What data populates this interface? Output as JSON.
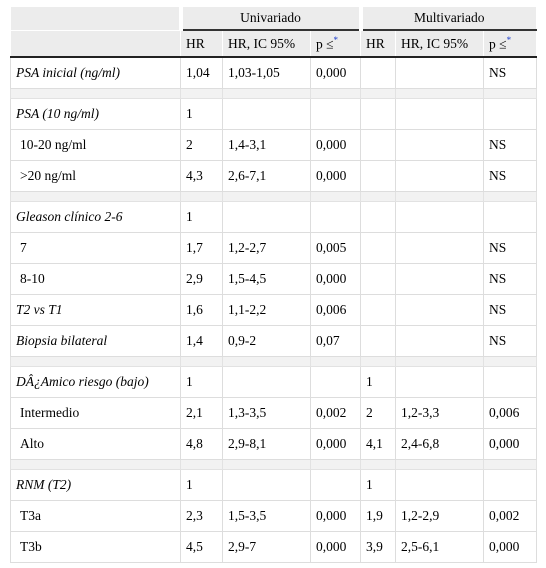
{
  "table": {
    "header": {
      "groups": [
        "Univariado",
        "Multivariado"
      ],
      "columns": [
        "HR",
        "HR, IC 95%",
        "p ≤",
        "HR",
        "HR, IC 95%",
        "p ≤"
      ],
      "footnote_mark": "*"
    },
    "groups": [
      [
        {
          "label": "PSA inicial (ng/ml)",
          "style": "italic",
          "cells": [
            "1,04",
            "1,03-1,05",
            "0,000",
            null,
            null,
            "NS"
          ]
        }
      ],
      [
        {
          "label": "PSA (10 ng/ml)",
          "style": "italic",
          "cells": [
            "1",
            null,
            null,
            null,
            null,
            null
          ]
        },
        {
          "label": "10-20 ng/ml",
          "style": "indent",
          "cells": [
            "2",
            "1,4-3,1",
            "0,000",
            null,
            null,
            "NS"
          ]
        },
        {
          "label": ">20 ng/ml",
          "style": "indent",
          "cells": [
            "4,3",
            "2,6-7,1",
            "0,000",
            null,
            null,
            "NS"
          ]
        }
      ],
      [
        {
          "label": "Gleason clínico 2-6",
          "style": "italic",
          "cells": [
            "1",
            null,
            null,
            null,
            null,
            null
          ]
        },
        {
          "label": "7",
          "style": "indent",
          "cells": [
            "1,7",
            "1,2-2,7",
            "0,005",
            null,
            null,
            "NS"
          ]
        },
        {
          "label": "8-10",
          "style": "indent",
          "cells": [
            "2,9",
            "1,5-4,5",
            "0,000",
            null,
            null,
            "NS"
          ]
        },
        {
          "label": "T2 vs T1",
          "style": "italic",
          "cells": [
            "1,6",
            "1,1-2,2",
            "0,006",
            null,
            null,
            "NS"
          ]
        },
        {
          "label": "Biopsia bilateral",
          "style": "italic",
          "cells": [
            "1,4",
            "0,9-2",
            "0,07",
            null,
            null,
            "NS"
          ]
        }
      ],
      [
        {
          "label": "DÂ¿Amico riesgo (bajo)",
          "style": "italic",
          "cells": [
            "1",
            null,
            null,
            "1",
            null,
            null
          ]
        },
        {
          "label": "Intermedio",
          "style": "indent",
          "cells": [
            "2,1",
            "1,3-3,5",
            "0,002",
            "2",
            "1,2-3,3",
            "0,006"
          ]
        },
        {
          "label": "Alto",
          "style": "indent",
          "cells": [
            "4,8",
            "2,9-8,1",
            "0,000",
            "4,1",
            "2,4-6,8",
            "0,000"
          ]
        }
      ],
      [
        {
          "label": "RNM (T2)",
          "style": "italic",
          "cells": [
            "1",
            null,
            null,
            "1",
            null,
            null
          ]
        },
        {
          "label": "T3a",
          "style": "indent",
          "cells": [
            "2,3",
            "1,5-3,5",
            "0,000",
            "1,9",
            "1,2-2,9",
            "0,002"
          ]
        },
        {
          "label": "T3b",
          "style": "indent",
          "cells": [
            "4,5",
            "2,9-7",
            "0,000",
            "3,9",
            "2,5-6,1",
            "0,000"
          ]
        }
      ]
    ]
  }
}
